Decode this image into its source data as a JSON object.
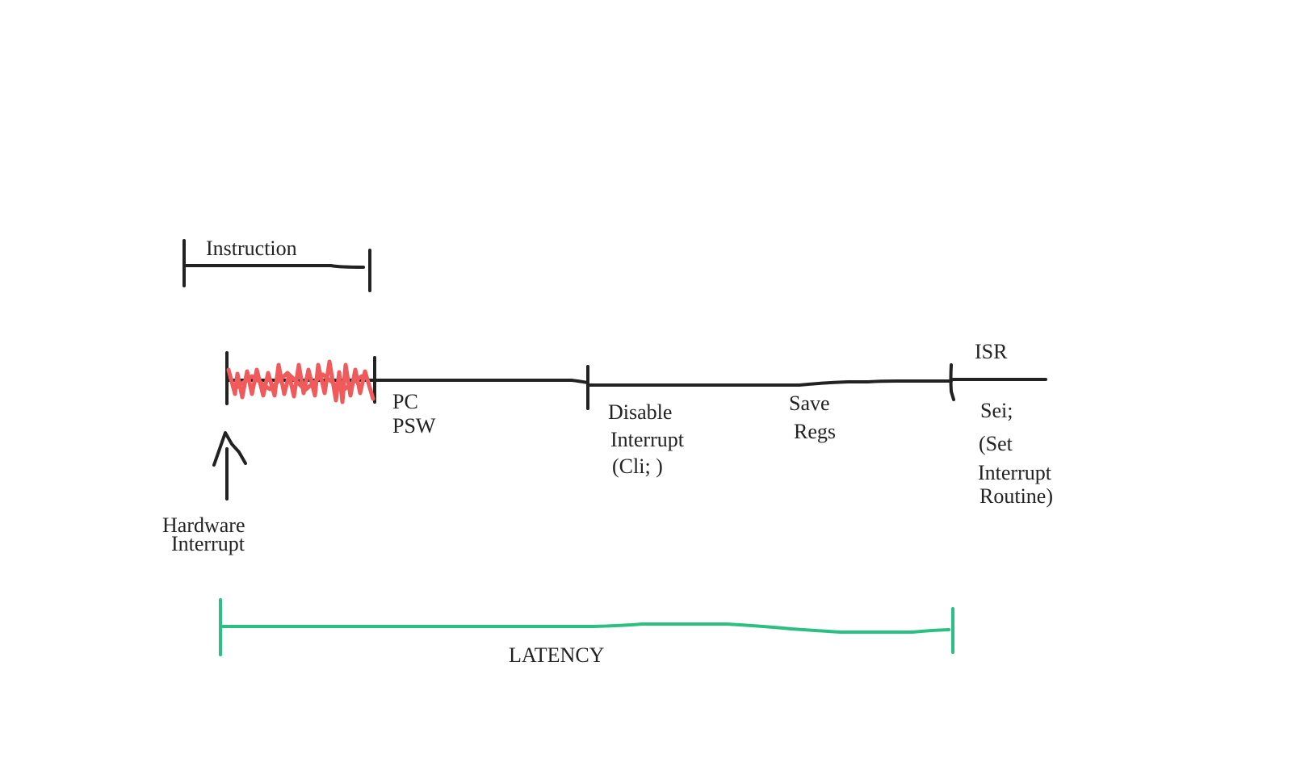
{
  "colors": {
    "ink": "#222222",
    "scribble": "#f05a5a",
    "latency": "#2bbf84",
    "background": "#ffffff"
  },
  "labels": {
    "instruction": "Instruction",
    "pc": "PC",
    "psw": "PSW",
    "disable_1": "Disable",
    "disable_2": "Interrupt",
    "disable_3": "(Cli; )",
    "save_1": "Save",
    "save_2": "Regs",
    "isr": "ISR",
    "sei_1": "Sei;",
    "sei_2": "(Set",
    "sei_3": "Interrupt",
    "sei_4": "Routine)",
    "hw_1": "Hardware",
    "hw_2": "Interrupt",
    "latency": "LATENCY"
  }
}
